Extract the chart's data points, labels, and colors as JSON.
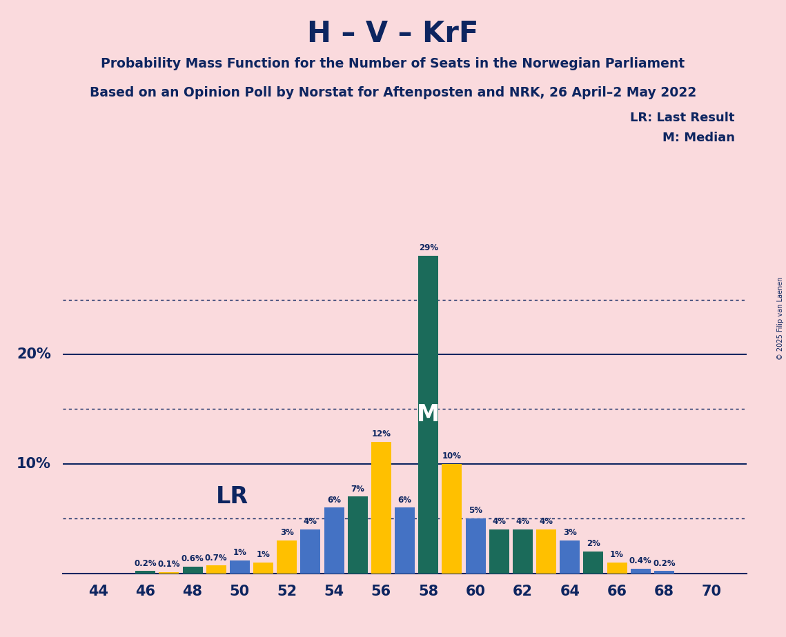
{
  "title": "H – V – KrF",
  "subtitle1": "Probability Mass Function for the Number of Seats in the Norwegian Parliament",
  "subtitle2": "Based on an Opinion Poll by Norstat for Aftenposten and NRK, 26 April–2 May 2022",
  "copyright": "© 2025 Filip van Laenen",
  "background_color": "#fadadd",
  "title_color": "#0d2560",
  "seats": [
    44,
    45,
    46,
    47,
    48,
    49,
    50,
    51,
    52,
    53,
    54,
    55,
    56,
    57,
    58,
    59,
    60,
    61,
    62,
    63,
    64,
    65,
    66,
    67,
    68,
    69,
    70
  ],
  "values": [
    0.0,
    0.0,
    0.2,
    0.1,
    0.6,
    0.7,
    1.2,
    1.0,
    3.0,
    4.0,
    6.0,
    7.0,
    12.0,
    6.0,
    29.0,
    10.0,
    5.0,
    4.0,
    4.0,
    4.0,
    3.0,
    2.0,
    1.0,
    0.4,
    0.2,
    0.0,
    0.0
  ],
  "bar_colors": [
    "#4472c4",
    "#4472c4",
    "#1b6b5a",
    "#ffc000",
    "#1b6b5a",
    "#ffc000",
    "#4472c4",
    "#ffc000",
    "#ffc000",
    "#4472c4",
    "#4472c4",
    "#1b6b5a",
    "#ffc000",
    "#4472c4",
    "#1b6b5a",
    "#ffc000",
    "#4472c4",
    "#1b6b5a",
    "#1b6b5a",
    "#ffc000",
    "#4472c4",
    "#1b6b5a",
    "#ffc000",
    "#4472c4",
    "#4472c4",
    "#4472c4",
    "#4472c4"
  ],
  "median_seat": 58,
  "lr_seat": 50,
  "lr_label": "LR",
  "median_label": "M",
  "ylim": [
    0,
    32
  ],
  "solid_yticks": [
    10,
    20
  ],
  "dotted_yticks": [
    5,
    15,
    25
  ],
  "color_blue": "#4472c4",
  "color_teal": "#1b6b5a",
  "color_gold": "#ffc000",
  "color_navy": "#0d2560",
  "legend_lr": "LR: Last Result",
  "legend_m": "M: Median",
  "bar_width": 0.85
}
